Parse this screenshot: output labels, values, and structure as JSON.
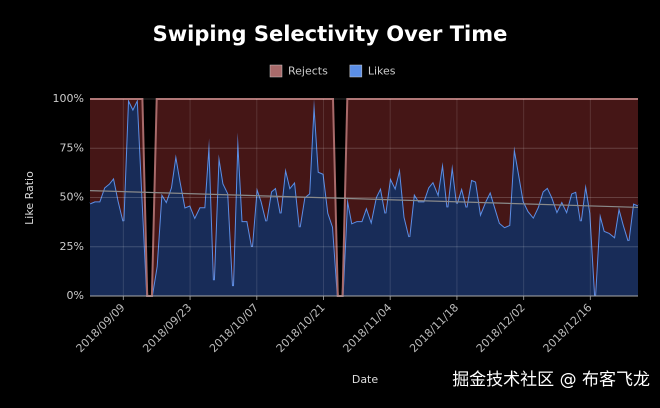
{
  "chart_data": {
    "type": "stacked_area",
    "title": "Swiping Selectivity Over Time",
    "x_label": "Date",
    "y_label": "Like Ratio",
    "watermark": "掘金技术社区 @ 布客飞龙",
    "x": [
      "2018/09/02",
      "2018/09/03",
      "2018/09/04",
      "2018/09/05",
      "2018/09/06",
      "2018/09/07",
      "2018/09/08",
      "2018/09/09",
      "2018/09/10",
      "2018/09/11",
      "2018/09/12",
      "2018/09/13",
      "2018/09/14",
      "2018/09/15",
      "2018/09/16",
      "2018/09/17",
      "2018/09/18",
      "2018/09/19",
      "2018/09/20",
      "2018/09/21",
      "2018/09/22",
      "2018/09/23",
      "2018/09/24",
      "2018/09/25",
      "2018/09/26",
      "2018/09/27",
      "2018/09/28",
      "2018/09/29",
      "2018/09/30",
      "2018/10/01",
      "2018/10/02",
      "2018/10/03",
      "2018/10/04",
      "2018/10/05",
      "2018/10/06",
      "2018/10/07",
      "2018/10/08",
      "2018/10/09",
      "2018/10/10",
      "2018/10/11",
      "2018/10/12",
      "2018/10/13",
      "2018/10/14",
      "2018/10/15",
      "2018/10/16",
      "2018/10/17",
      "2018/10/18",
      "2018/10/19",
      "2018/10/20",
      "2018/10/21",
      "2018/10/22",
      "2018/10/23",
      "2018/10/24",
      "2018/10/25",
      "2018/10/26",
      "2018/10/27",
      "2018/10/28",
      "2018/10/29",
      "2018/10/30",
      "2018/10/31",
      "2018/11/01",
      "2018/11/02",
      "2018/11/03",
      "2018/11/04",
      "2018/11/05",
      "2018/11/06",
      "2018/11/07",
      "2018/11/08",
      "2018/11/09",
      "2018/11/10",
      "2018/11/11",
      "2018/11/12",
      "2018/11/13",
      "2018/11/14",
      "2018/11/15",
      "2018/11/16",
      "2018/11/17",
      "2018/11/18",
      "2018/11/19",
      "2018/11/20",
      "2018/11/21",
      "2018/11/22",
      "2018/11/23",
      "2018/11/24",
      "2018/11/25",
      "2018/11/26",
      "2018/11/27",
      "2018/11/28",
      "2018/11/29",
      "2018/11/30",
      "2018/12/01",
      "2018/12/02",
      "2018/12/03",
      "2018/12/04",
      "2018/12/05",
      "2018/12/06",
      "2018/12/07",
      "2018/12/08",
      "2018/12/09",
      "2018/12/10",
      "2018/12/11",
      "2018/12/12",
      "2018/12/13",
      "2018/12/14",
      "2018/12/15",
      "2018/12/16",
      "2018/12/17",
      "2018/12/18",
      "2018/12/19",
      "2018/12/20",
      "2018/12/21",
      "2018/12/22",
      "2018/12/23",
      "2018/12/24",
      "2018/12/25",
      "2018/12/26"
    ],
    "series": [
      {
        "name": "Rejects",
        "color": "#a86a6a",
        "fill": "#451616",
        "values": [
          53,
          52,
          52,
          45,
          43,
          40,
          52,
          62,
          0,
          5,
          0,
          50,
          0,
          0,
          85,
          48,
          52,
          45,
          28,
          42,
          55,
          54,
          60,
          55,
          55,
          20,
          92,
          28,
          43,
          48,
          95,
          17,
          62,
          62,
          75,
          45,
          52,
          62,
          47,
          45,
          58,
          35,
          45,
          42,
          65,
          50,
          48,
          0,
          37,
          38,
          58,
          65,
          0,
          0,
          50,
          63,
          62,
          62,
          55,
          62,
          50,
          45,
          58,
          40,
          45,
          35,
          60,
          70,
          48,
          52,
          52,
          45,
          42,
          48,
          32,
          55,
          33,
          53,
          45,
          55,
          41,
          42,
          58,
          52,
          47,
          55,
          63,
          65,
          64,
          24,
          38,
          52,
          57,
          60,
          55,
          47,
          45,
          50,
          57,
          52,
          57,
          48,
          47,
          62,
          43,
          58,
          100,
          58,
          67,
          68,
          70,
          55,
          64,
          72,
          53,
          54
        ]
      },
      {
        "name": "Likes",
        "color": "#5b8ee6",
        "fill": "#182c58",
        "values": [
          47,
          48,
          48,
          55,
          57,
          60,
          48,
          38,
          100,
          95,
          100,
          50,
          0,
          0,
          15,
          52,
          48,
          55,
          72,
          58,
          45,
          46,
          40,
          45,
          45,
          80,
          8,
          72,
          57,
          52,
          5,
          83,
          38,
          38,
          25,
          55,
          48,
          38,
          53,
          55,
          42,
          65,
          55,
          58,
          35,
          50,
          52,
          100,
          63,
          62,
          42,
          35,
          0,
          0,
          50,
          37,
          38,
          38,
          45,
          38,
          50,
          55,
          42,
          60,
          55,
          65,
          40,
          30,
          52,
          48,
          48,
          55,
          58,
          52,
          68,
          45,
          67,
          47,
          55,
          45,
          59,
          58,
          42,
          48,
          53,
          45,
          37,
          35,
          36,
          76,
          62,
          48,
          43,
          40,
          45,
          53,
          55,
          50,
          43,
          48,
          43,
          52,
          53,
          38,
          57,
          42,
          0,
          42,
          33,
          32,
          30,
          45,
          36,
          28,
          47,
          46
        ]
      }
    ],
    "trend": {
      "start": 53.5,
      "end": 45,
      "color": "#8a8a8a"
    },
    "stack_order": [
      "Likes",
      "Rejects"
    ],
    "xlim": [
      "2018/09/02",
      "2018/12/26"
    ],
    "xticks": [
      "2018/09/09",
      "2018/09/23",
      "2018/10/07",
      "2018/10/21",
      "2018/11/04",
      "2018/11/18",
      "2018/12/02",
      "2018/12/16"
    ],
    "ylim": [
      0,
      100
    ],
    "yticks": [
      {
        "value": 0,
        "label": "0%"
      },
      {
        "value": 25,
        "label": "25%"
      },
      {
        "value": 50,
        "label": "50%"
      },
      {
        "value": 75,
        "label": "75%"
      },
      {
        "value": 100,
        "label": "100%"
      }
    ],
    "grid": true,
    "legend": "top"
  }
}
